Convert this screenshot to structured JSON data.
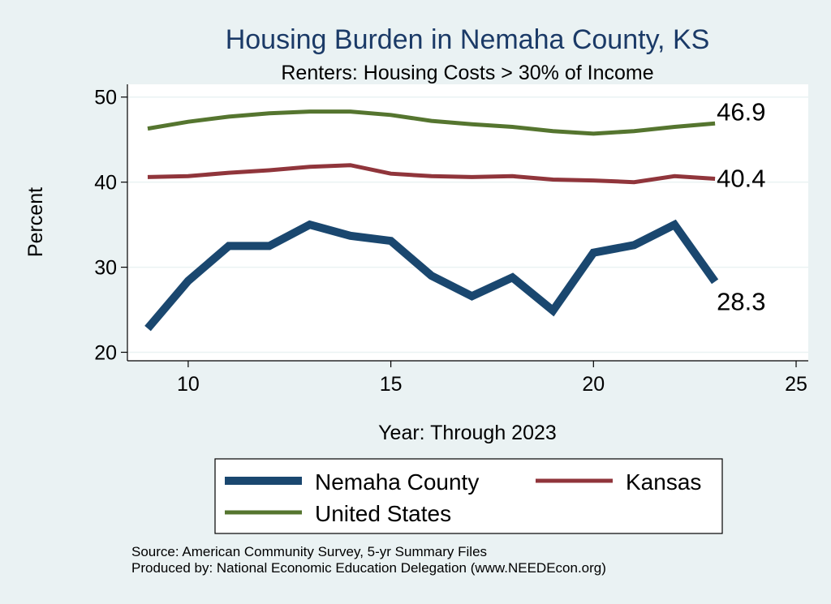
{
  "chart_data": {
    "type": "line",
    "title": "Housing Burden in Nemaha County, KS",
    "subtitle": "Renters: Housing Costs > 30% of Income",
    "xlabel": "Year: Through 2023",
    "ylabel": "Percent",
    "xlim": [
      8.5,
      25.3
    ],
    "ylim": [
      19,
      51.5
    ],
    "x_ticks": [
      10,
      15,
      20,
      25
    ],
    "y_ticks": [
      20,
      30,
      40,
      50
    ],
    "x": [
      9,
      10,
      11,
      12,
      13,
      14,
      15,
      16,
      17,
      18,
      19,
      20,
      21,
      22,
      23
    ],
    "series": [
      {
        "name": "Nemaha County",
        "color": "#1a476f",
        "values": [
          22.8,
          28.4,
          32.5,
          32.5,
          35.0,
          33.7,
          33.1,
          29.0,
          26.6,
          28.8,
          24.9,
          31.7,
          32.6,
          35.0,
          28.3
        ],
        "end_label": "28.3"
      },
      {
        "name": "Kansas",
        "color": "#90353b",
        "values": [
          40.6,
          40.7,
          41.1,
          41.4,
          41.8,
          42.0,
          41.0,
          40.7,
          40.6,
          40.7,
          40.3,
          40.2,
          40.0,
          40.7,
          40.4
        ],
        "end_label": "40.4"
      },
      {
        "name": "United States",
        "color": "#55752f",
        "values": [
          46.3,
          47.1,
          47.7,
          48.1,
          48.3,
          48.3,
          47.9,
          47.2,
          46.8,
          46.5,
          46.0,
          45.7,
          46.0,
          46.5,
          46.9
        ],
        "end_label": "46.9"
      }
    ],
    "legend": {
      "position": "bottom",
      "entries": [
        "Nemaha County",
        "Kansas",
        "United States"
      ]
    },
    "notes": [
      "Source: American Community Survey, 5-yr Summary Files",
      "Produced by: National Economic Education Delegation (www.NEEDEcon.org)"
    ]
  }
}
